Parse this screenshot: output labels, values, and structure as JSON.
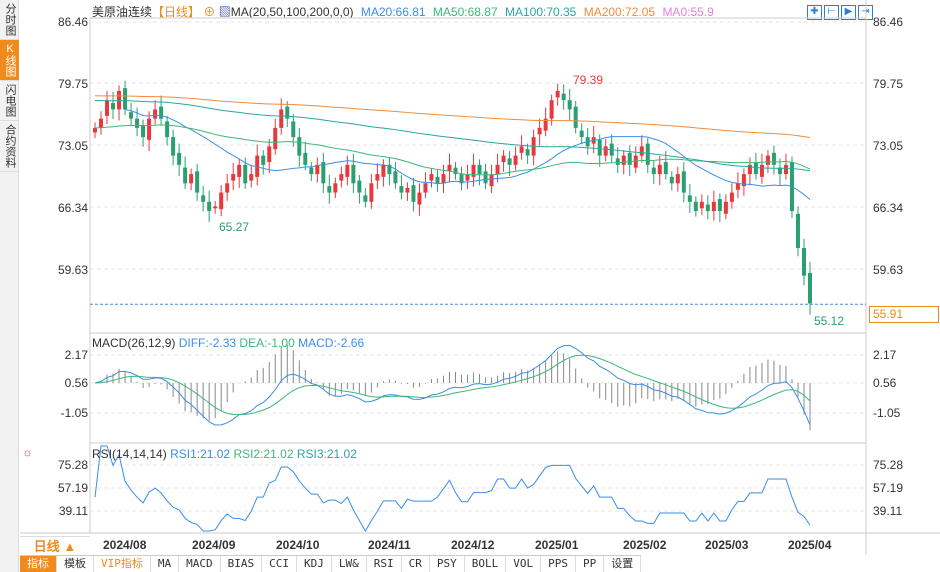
{
  "sidebar": {
    "tabs": [
      "分时图",
      "K线图",
      "闪电图",
      "合约资料"
    ],
    "active": 1
  },
  "header": {
    "symbol": "美原油连续",
    "period": "【日线】",
    "ma_label": "MA(20,50,100,200,0,0)",
    "ma20": "MA20:66.81",
    "ma50": "MA50:68.87",
    "ma100": "MA100:70.35",
    "ma200": "MA200:72.05",
    "ma5": "MA0:55.9"
  },
  "toolbar": {
    "icons": [
      "crosshair-icon",
      "fit-range-icon",
      "play-forward-icon",
      "scroll-end-icon"
    ]
  },
  "price_axis": {
    "labels": [
      "86.46",
      "79.75",
      "73.05",
      "66.34",
      "59.63"
    ],
    "current": "55.91"
  },
  "annotations": {
    "high": "79.39",
    "low1": "65.27",
    "low2": "55.12"
  },
  "macd": {
    "title": "MACD(26,12,9)",
    "diff": "DIFF:-2.33",
    "dea": "DEA:-1.00",
    "macd": "MACD:-2.66",
    "axis": [
      "2.17",
      "0.56",
      "-1.05"
    ]
  },
  "rsi": {
    "title": "RSI(14,14,14)",
    "rsi1": "RSI1:21.02",
    "rsi2": "RSI2:21.02",
    "rsi3": "RSI3:21.02",
    "axis": [
      "75.28",
      "57.19",
      "39.11"
    ]
  },
  "period_selector": "日线 ▲",
  "dates": [
    "2024/08",
    "2024/09",
    "2024/10",
    "2024/11",
    "2024/12",
    "2025/01",
    "2025/02",
    "2025/03",
    "2025/04"
  ],
  "bottom_tabs": [
    "指标",
    "模板",
    "VIP指标",
    "MA",
    "MACD",
    "BIAS",
    "CCI",
    "KDJ",
    "LW&",
    "RSI",
    "CR",
    "PSY",
    "BOLL",
    "VOL",
    "PPS",
    "PP",
    "设置"
  ],
  "colors": {
    "up": "#e8383d",
    "down": "#2aa070",
    "ma20": "#3a8ee6",
    "ma50": "#3cb878",
    "ma100": "#2aa6a0",
    "ma200": "#f08c3a",
    "ma5": "#e080e0"
  },
  "chart_data": {
    "type": "candlestick",
    "price_range": [
      55.12,
      86.46
    ],
    "closes": [
      75,
      76,
      78,
      77,
      79,
      77,
      76,
      75,
      74,
      76,
      77,
      76,
      74,
      72,
      71,
      69,
      70,
      68,
      67,
      66,
      66.5,
      68,
      69,
      70,
      71,
      69,
      70,
      72,
      71,
      73,
      75,
      77,
      76,
      74,
      72,
      71,
      70,
      71,
      69,
      68,
      69,
      70,
      71,
      69,
      68,
      67,
      69,
      70,
      71,
      70,
      69,
      68,
      68.5,
      67,
      68,
      69,
      70,
      69,
      70,
      71,
      70,
      69,
      70,
      71,
      70,
      69,
      70,
      71,
      72,
      71,
      72,
      73,
      72,
      74,
      75,
      76,
      78,
      79,
      78,
      77,
      75,
      74,
      73,
      74,
      72,
      73,
      72,
      71,
      72,
      71,
      72,
      73,
      71,
      70,
      71,
      70,
      69,
      70,
      68,
      67,
      66,
      67,
      66,
      67,
      66,
      67,
      68,
      69,
      70,
      71,
      70,
      71,
      72,
      71,
      70,
      71,
      66,
      62,
      59,
      56
    ]
  }
}
